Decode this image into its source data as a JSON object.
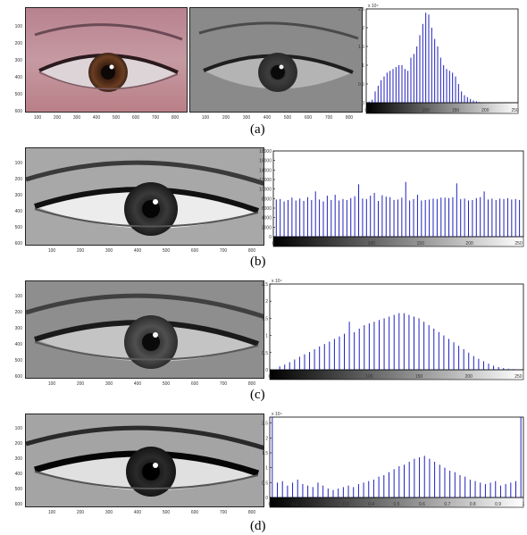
{
  "figure": {
    "rows": [
      {
        "label": "(a)",
        "left_image": {
          "type": "color",
          "x_ticks": [
            "100",
            "200",
            "300",
            "400",
            "500",
            "600",
            "700",
            "800"
          ],
          "y_ticks": [
            "100",
            "200",
            "300",
            "400",
            "500",
            "600"
          ]
        },
        "middle_image": {
          "type": "gray",
          "x_ticks": [
            "100",
            "200",
            "300",
            "400",
            "500",
            "600",
            "700",
            "800"
          ],
          "y_ticks": [
            "100",
            "200",
            "300",
            "400",
            "500",
            "600"
          ]
        }
      },
      {
        "label": "(b)",
        "left_image": {
          "type": "gray-equalized",
          "x_ticks": [
            "100",
            "200",
            "300",
            "400",
            "500",
            "600",
            "700",
            "800"
          ],
          "y_ticks": [
            "100",
            "200",
            "300",
            "400",
            "500",
            "600"
          ]
        }
      },
      {
        "label": "(c)",
        "left_image": {
          "type": "gray-contrast",
          "x_ticks": [
            "100",
            "200",
            "300",
            "400",
            "500",
            "600",
            "700",
            "800"
          ],
          "y_ticks": [
            "100",
            "200",
            "300",
            "400",
            "500",
            "600"
          ]
        }
      },
      {
        "label": "(d)",
        "left_image": {
          "type": "gray-dark",
          "x_ticks": [
            "100",
            "200",
            "300",
            "400",
            "500",
            "600",
            "700",
            "800"
          ],
          "y_ticks": [
            "100",
            "200",
            "300",
            "400",
            "500",
            "600"
          ]
        }
      }
    ],
    "colors": {
      "bar": "#2020c0",
      "axis": "#000000"
    }
  },
  "chart_data": [
    {
      "type": "bar",
      "panel": "(a)",
      "exponent_label": "x 10⁴",
      "xlim": [
        0,
        255
      ],
      "ylim": [
        0,
        2.5
      ],
      "x_ticks": [
        "0",
        "50",
        "100",
        "150",
        "200",
        "250"
      ],
      "y_ticks": [
        "0",
        "0.5",
        "1",
        "1.5",
        "2",
        "2.5"
      ],
      "x": [
        5,
        10,
        15,
        20,
        25,
        30,
        35,
        40,
        45,
        50,
        55,
        60,
        65,
        70,
        75,
        80,
        85,
        90,
        95,
        100,
        105,
        110,
        115,
        120,
        125,
        130,
        135,
        140,
        145,
        150,
        155,
        160,
        165,
        170,
        175,
        180,
        185,
        190,
        195,
        200
      ],
      "values": [
        0.03,
        0.08,
        0.3,
        0.45,
        0.6,
        0.7,
        0.8,
        0.85,
        0.9,
        0.95,
        1.0,
        1.0,
        0.9,
        0.85,
        1.2,
        1.3,
        1.5,
        1.8,
        2.1,
        2.4,
        2.35,
        2.0,
        1.7,
        1.5,
        1.2,
        1.0,
        0.9,
        0.85,
        0.8,
        0.7,
        0.5,
        0.3,
        0.2,
        0.15,
        0.1,
        0.06,
        0.04,
        0.02,
        0.01,
        0.0
      ]
    },
    {
      "type": "bar",
      "panel": "(b)",
      "xlim": [
        0,
        255
      ],
      "ylim": [
        0,
        18000
      ],
      "x_ticks": [
        "0",
        "50",
        "100",
        "150",
        "200",
        "250"
      ],
      "y_ticks": [
        "0",
        "2000",
        "4000",
        "6000",
        "8000",
        "10000",
        "12000",
        "14000",
        "16000",
        "18000"
      ],
      "x": [
        3,
        7,
        11,
        15,
        19,
        23,
        27,
        31,
        35,
        39,
        43,
        47,
        51,
        55,
        59,
        63,
        67,
        71,
        75,
        79,
        83,
        87,
        91,
        95,
        99,
        103,
        107,
        111,
        115,
        119,
        123,
        127,
        131,
        135,
        139,
        143,
        147,
        151,
        155,
        159,
        163,
        167,
        171,
        175,
        179,
        183,
        187,
        191,
        195,
        199,
        203,
        207,
        211,
        215,
        219,
        223,
        227,
        231,
        235,
        239,
        243,
        247,
        251
      ],
      "values": [
        7800,
        7900,
        7400,
        7700,
        8200,
        7600,
        8000,
        7500,
        8300,
        7700,
        9500,
        7800,
        7400,
        8600,
        7700,
        8800,
        7600,
        7900,
        7700,
        8100,
        8500,
        11000,
        8000,
        7900,
        8600,
        9200,
        7500,
        8700,
        8400,
        8300,
        7700,
        7800,
        8200,
        11500,
        7600,
        7900,
        8800,
        7600,
        7700,
        7800,
        8000,
        7900,
        8200,
        8200,
        8100,
        8300,
        11200,
        7900,
        8000,
        7600,
        7700,
        8100,
        8300,
        9500,
        7800,
        8000,
        7700,
        8000,
        7900,
        8100,
        7800,
        7900,
        7700
      ]
    },
    {
      "type": "bar",
      "panel": "(c)",
      "exponent_label": "x 10⁴",
      "xlim": [
        0,
        255
      ],
      "ylim": [
        0,
        2.5
      ],
      "x_ticks": [
        "0",
        "50",
        "100",
        "150",
        "200",
        "250"
      ],
      "y_ticks": [
        "0",
        "0.5",
        "1",
        "1.5",
        "2",
        "2.5"
      ],
      "x": [
        10,
        15,
        20,
        25,
        30,
        35,
        40,
        45,
        50,
        55,
        60,
        65,
        70,
        75,
        80,
        85,
        90,
        95,
        100,
        105,
        110,
        115,
        120,
        125,
        130,
        135,
        140,
        145,
        150,
        155,
        160,
        165,
        170,
        175,
        180,
        185,
        190,
        195,
        200,
        205,
        210,
        215,
        220,
        225,
        230,
        235,
        240,
        245,
        250
      ],
      "values": [
        0.1,
        0.15,
        0.22,
        0.3,
        0.38,
        0.45,
        0.52,
        0.6,
        0.68,
        0.75,
        0.82,
        0.9,
        0.97,
        1.05,
        1.4,
        1.1,
        1.2,
        1.3,
        1.35,
        1.4,
        1.45,
        1.5,
        1.55,
        1.6,
        1.65,
        1.65,
        1.6,
        1.55,
        1.5,
        1.4,
        1.3,
        1.2,
        1.1,
        1.0,
        0.9,
        0.8,
        0.7,
        0.6,
        0.5,
        0.4,
        0.32,
        0.25,
        0.18,
        0.12,
        0.08,
        0.05,
        0.03,
        0.02,
        0.01
      ]
    },
    {
      "type": "bar",
      "panel": "(d)",
      "exponent_label": "x 10⁴",
      "xlim": [
        0,
        1
      ],
      "ylim": [
        0,
        2.7
      ],
      "x_ticks": [
        "0",
        "0.1",
        "0.2",
        "0.3",
        "0.4",
        "0.5",
        "0.6",
        "0.7",
        "0.8",
        "0.9",
        "1"
      ],
      "y_ticks": [
        "0",
        "0.5",
        "1",
        "1.5",
        "2",
        "2.5"
      ],
      "x": [
        0.01,
        0.03,
        0.05,
        0.07,
        0.09,
        0.11,
        0.13,
        0.15,
        0.17,
        0.19,
        0.21,
        0.23,
        0.25,
        0.27,
        0.29,
        0.31,
        0.33,
        0.35,
        0.37,
        0.39,
        0.41,
        0.43,
        0.45,
        0.47,
        0.49,
        0.51,
        0.53,
        0.55,
        0.57,
        0.59,
        0.61,
        0.63,
        0.65,
        0.67,
        0.69,
        0.71,
        0.73,
        0.75,
        0.77,
        0.79,
        0.81,
        0.83,
        0.85,
        0.87,
        0.89,
        0.91,
        0.93,
        0.95,
        0.97,
        0.99
      ],
      "values": [
        2.7,
        0.5,
        0.55,
        0.4,
        0.5,
        0.6,
        0.45,
        0.4,
        0.35,
        0.5,
        0.4,
        0.3,
        0.25,
        0.3,
        0.35,
        0.4,
        0.35,
        0.45,
        0.5,
        0.55,
        0.6,
        0.7,
        0.75,
        0.85,
        0.95,
        1.05,
        1.1,
        1.2,
        1.3,
        1.35,
        1.4,
        1.3,
        1.2,
        1.1,
        1.0,
        0.9,
        0.85,
        0.75,
        0.7,
        0.6,
        0.55,
        0.5,
        0.45,
        0.5,
        0.55,
        0.4,
        0.45,
        0.5,
        0.55,
        2.7
      ]
    }
  ]
}
